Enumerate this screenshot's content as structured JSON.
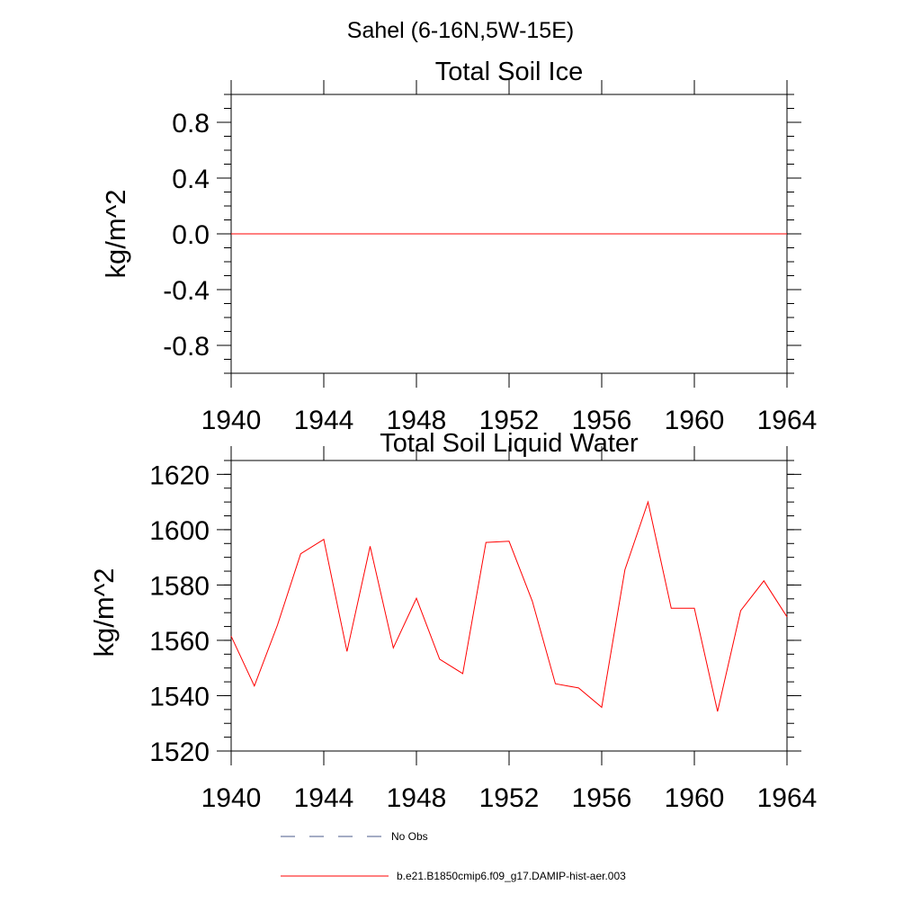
{
  "suptitle": "Sahel (6-16N,5W-15E)",
  "colors": {
    "series": "#ff0000",
    "obs": "#4a5a8a",
    "axis": "#000000"
  },
  "chart_data": [
    {
      "type": "line",
      "title": "Total Soil Ice",
      "ylabel": "kg/m^2",
      "xlim": [
        1940,
        1964
      ],
      "ylim": [
        -1,
        1
      ],
      "xticks": [
        1940,
        1944,
        1948,
        1952,
        1956,
        1960,
        1964
      ],
      "yticks": [
        -0.8,
        -0.4,
        0.0,
        0.4,
        0.8
      ],
      "ytick_labels": [
        "-0.8",
        "-0.4",
        "0.0",
        "0.4",
        "0.8"
      ],
      "series": [
        {
          "name": "b.e21.B1850cmip6.f09_g17.DAMIP-hist-aer.003",
          "x": [
            1940,
            1941,
            1942,
            1943,
            1944,
            1945,
            1946,
            1947,
            1948,
            1949,
            1950,
            1951,
            1952,
            1953,
            1954,
            1955,
            1956,
            1957,
            1958,
            1959,
            1960,
            1961,
            1962,
            1963,
            1964
          ],
          "y": [
            0,
            0,
            0,
            0,
            0,
            0,
            0,
            0,
            0,
            0,
            0,
            0,
            0,
            0,
            0,
            0,
            0,
            0,
            0,
            0,
            0,
            0,
            0,
            0,
            0
          ]
        }
      ]
    },
    {
      "type": "line",
      "title": "Total Soil Liquid Water",
      "ylabel": "kg/m^2",
      "xlim": [
        1940,
        1964
      ],
      "ylim": [
        1520,
        1625
      ],
      "xticks": [
        1940,
        1944,
        1948,
        1952,
        1956,
        1960,
        1964
      ],
      "yticks": [
        1520,
        1540,
        1560,
        1580,
        1600,
        1620
      ],
      "ytick_labels": [
        "1520",
        "1540",
        "1560",
        "1580",
        "1600",
        "1620"
      ],
      "series": [
        {
          "name": "b.e21.B1850cmip6.f09_g17.DAMIP-hist-aer.003",
          "x": [
            1940,
            1941,
            1942,
            1943,
            1944,
            1945,
            1946,
            1947,
            1948,
            1949,
            1950,
            1951,
            1952,
            1953,
            1954,
            1955,
            1956,
            1957,
            1958,
            1959,
            1960,
            1961,
            1962,
            1963,
            1964
          ],
          "y": [
            1561.5,
            1543.5,
            1565.5,
            1591.3,
            1596.5,
            1556,
            1594,
            1557.3,
            1575.2,
            1553.2,
            1548,
            1595.4,
            1595.8,
            1574.2,
            1544.3,
            1542.8,
            1535.8,
            1585.5,
            1610,
            1571.6,
            1571.6,
            1534.3,
            1570.7,
            1581.5,
            1568.5
          ]
        }
      ]
    }
  ],
  "legend": [
    {
      "label": "No Obs",
      "style": "dashed"
    },
    {
      "label": "b.e21.B1850cmip6.f09_g17.DAMIP-hist-aer.003",
      "style": "solid"
    }
  ]
}
